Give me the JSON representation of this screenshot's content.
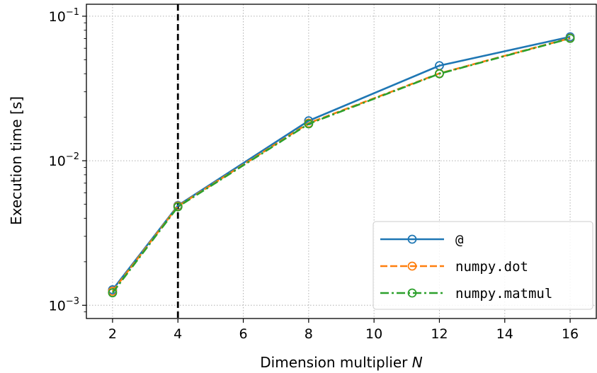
{
  "chart_data": {
    "type": "line",
    "xlabel": "Dimension multiplier",
    "xlabel_var": "N",
    "ylabel": "Execution time [s]",
    "xlim": [
      1.2,
      16.8
    ],
    "ylim": [
      0.00081,
      0.121
    ],
    "yscale": "log",
    "x_ticks": [
      2,
      4,
      6,
      8,
      10,
      12,
      14,
      16
    ],
    "y_ticks": [
      {
        "value": 0.001,
        "base": "10",
        "exp": "−3"
      },
      {
        "value": 0.01,
        "base": "10",
        "exp": "−2"
      },
      {
        "value": 0.1,
        "base": "10",
        "exp": "−1"
      }
    ],
    "grid": true,
    "legend_position": "bottom-right",
    "vline": {
      "x": 4,
      "style": "dashed",
      "color": "#000000"
    },
    "x": [
      2,
      4,
      8,
      12,
      16
    ],
    "series": [
      {
        "name": "@",
        "color": "#1f77b4",
        "style": "solid",
        "values": [
          0.00128,
          0.0049,
          0.0189,
          0.0455,
          0.072
        ]
      },
      {
        "name": "numpy.dot",
        "color": "#ff7f0e",
        "style": "dashed",
        "values": [
          0.00125,
          0.00485,
          0.0182,
          0.0402,
          0.0705
        ]
      },
      {
        "name": "numpy.matmul",
        "color": "#2ca02c",
        "style": "dashdot",
        "values": [
          0.00122,
          0.0048,
          0.018,
          0.04,
          0.0702
        ]
      }
    ]
  }
}
